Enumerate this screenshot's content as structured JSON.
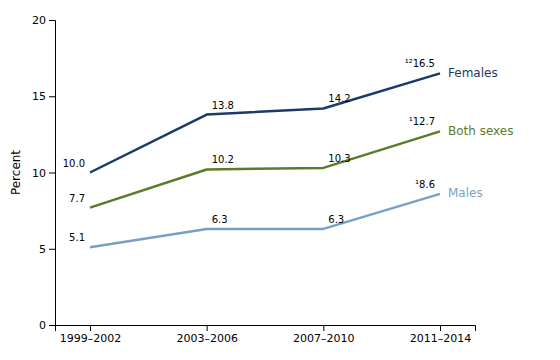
{
  "chart_data": {
    "type": "line",
    "categories": [
      "1999–2002",
      "2003–2006",
      "2007–2010",
      "2011–2014"
    ],
    "series": [
      {
        "name": "Females",
        "color": "#1a3a6b",
        "values": [
          10.0,
          13.8,
          14.2,
          16.5
        ],
        "value_labels": [
          "10.0",
          "13.8",
          "14.2",
          "¹²16.5"
        ]
      },
      {
        "name": "Both sexes",
        "color": "#5b7b2a",
        "values": [
          7.7,
          10.2,
          10.3,
          12.7
        ],
        "value_labels": [
          "7.7",
          "10.2",
          "10.3",
          "¹12.7"
        ]
      },
      {
        "name": "Males",
        "color": "#7b9fc4",
        "values": [
          5.1,
          6.3,
          6.3,
          8.6
        ],
        "value_labels": [
          "5.1",
          "6.3",
          "6.3",
          "¹8.6"
        ]
      }
    ],
    "ylabel": "Percent",
    "ylim": [
      0,
      20
    ],
    "yticks": [
      0,
      5,
      10,
      15,
      20
    ],
    "data_labels": true,
    "grid": false
  }
}
